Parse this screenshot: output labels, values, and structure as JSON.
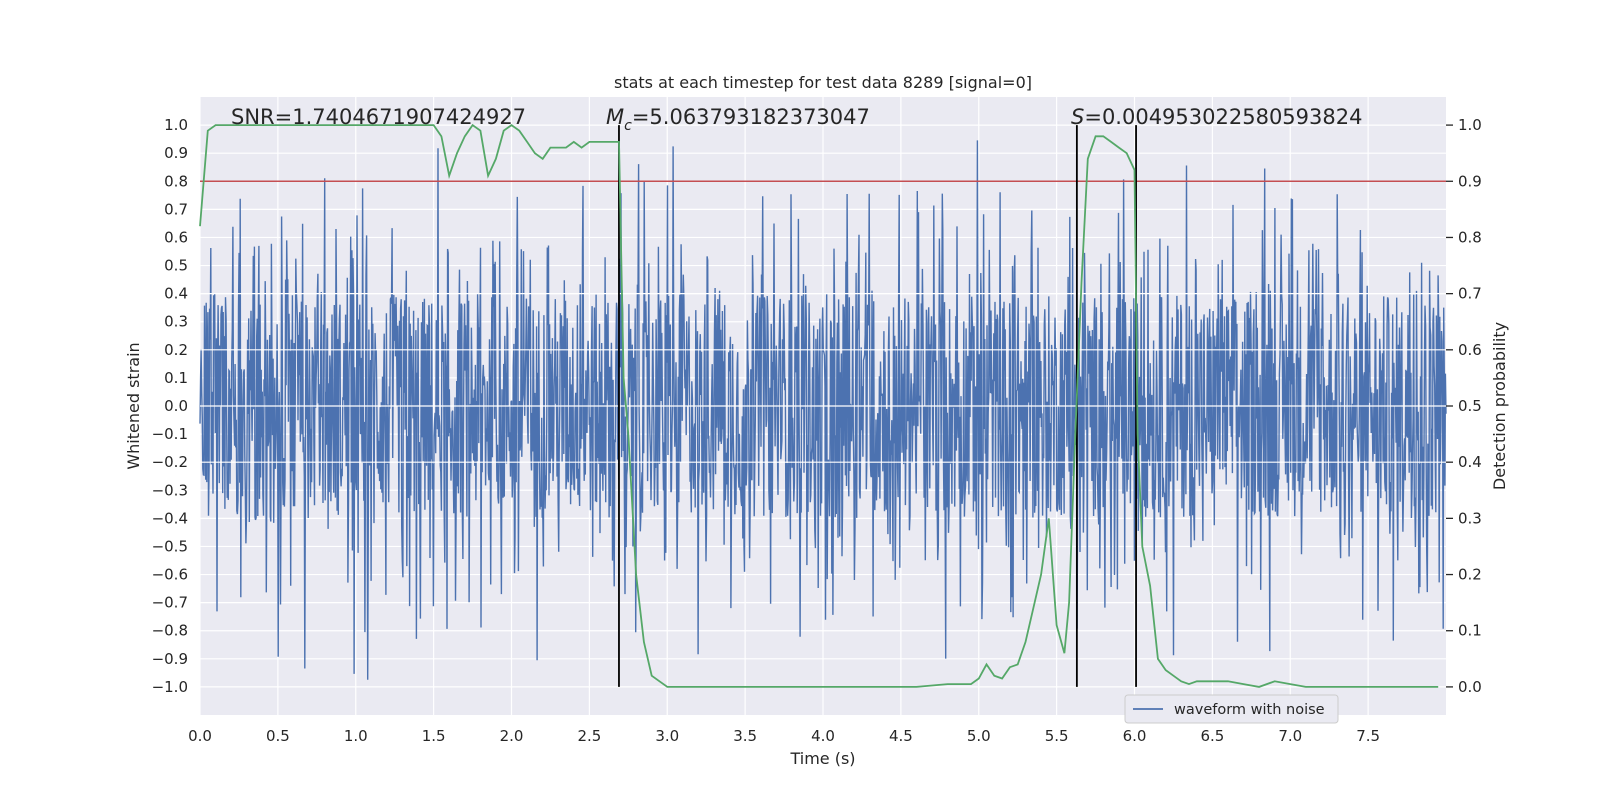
{
  "chart_data": {
    "type": "line",
    "title": "stats at each timestep for test data 8289 [signal=0]",
    "xlabel": "Time (s)",
    "ylabel_left": "Whitened strain",
    "ylabel_right": "Detection probability",
    "xlim": [
      0,
      8
    ],
    "ylim_left": [
      -1.1,
      1.1
    ],
    "ylim_right": [
      -0.05,
      1.05
    ],
    "grid": true,
    "x_ticks": [
      "0.0",
      "0.5",
      "1.0",
      "1.5",
      "2.0",
      "2.5",
      "3.0",
      "3.5",
      "4.0",
      "4.5",
      "5.0",
      "5.5",
      "6.0",
      "6.5",
      "7.0",
      "7.5"
    ],
    "x_tick_values": [
      0,
      0.5,
      1,
      1.5,
      2,
      2.5,
      3,
      3.5,
      4,
      4.5,
      5,
      5.5,
      6,
      6.5,
      7,
      7.5
    ],
    "y_left_ticks": [
      "1.0",
      "0.9",
      "0.8",
      "0.7",
      "0.6",
      "0.5",
      "0.4",
      "0.3",
      "0.2",
      "0.1",
      "0.0",
      "−0.1",
      "−0.2",
      "−0.3",
      "−0.4",
      "−0.5",
      "−0.6",
      "−0.7",
      "−0.8",
      "−0.9",
      "−1.0"
    ],
    "y_left_tick_values": [
      1,
      0.9,
      0.8,
      0.7,
      0.6,
      0.5,
      0.4,
      0.3,
      0.2,
      0.1,
      0,
      -0.1,
      -0.2,
      -0.3,
      -0.4,
      -0.5,
      -0.6,
      -0.7,
      -0.8,
      -0.9,
      -1
    ],
    "y_right_ticks": [
      "1.0",
      "0.9",
      "0.8",
      "0.7",
      "0.6",
      "0.5",
      "0.4",
      "0.3",
      "0.2",
      "0.1",
      "0.0"
    ],
    "y_right_tick_values": [
      1,
      0.9,
      0.8,
      0.7,
      0.6,
      0.5,
      0.4,
      0.3,
      0.2,
      0.1,
      0
    ],
    "annotations": {
      "snr": "SNR=1.7404671907424927",
      "mc_symbol": "M",
      "mc_sub": "c",
      "mc_value": "=5.063793182373047",
      "s_symbol": "S",
      "s_value": "=0.004953022580593824"
    },
    "threshold": 0.9,
    "vlines": [
      2.69,
      5.63,
      6.01
    ],
    "series": [
      {
        "name": "waveform with noise",
        "color": "#4c72b0",
        "seed": 8289,
        "typical_amplitude": [
          -0.38,
          0.38
        ],
        "peak_min": -1.0,
        "peak_max": 0.98
      },
      {
        "name": "detection probability",
        "color": "#55a868",
        "x": [
          0,
          0.05,
          0.1,
          0.2,
          0.4,
          0.6,
          0.8,
          1.0,
          1.2,
          1.4,
          1.5,
          1.55,
          1.6,
          1.65,
          1.7,
          1.75,
          1.8,
          1.85,
          1.9,
          1.95,
          2.0,
          2.05,
          2.1,
          2.15,
          2.2,
          2.25,
          2.3,
          2.35,
          2.4,
          2.45,
          2.5,
          2.55,
          2.6,
          2.65,
          2.69,
          2.72,
          2.75,
          2.78,
          2.8,
          2.85,
          2.9,
          2.95,
          3.0,
          3.2,
          3.5,
          4.0,
          4.5,
          4.6,
          4.8,
          4.95,
          5.0,
          5.05,
          5.1,
          5.15,
          5.2,
          5.25,
          5.3,
          5.35,
          5.4,
          5.45,
          5.5,
          5.55,
          5.58,
          5.62,
          5.66,
          5.7,
          5.75,
          5.8,
          5.85,
          5.9,
          5.95,
          6.0,
          6.02,
          6.05,
          6.1,
          6.15,
          6.2,
          6.25,
          6.3,
          6.35,
          6.4,
          6.45,
          6.5,
          6.6,
          6.7,
          6.8,
          6.9,
          7.0,
          7.1,
          7.3,
          7.5,
          7.7,
          7.9,
          7.95
        ],
        "y": [
          0.82,
          0.99,
          1.0,
          1.0,
          1.0,
          1.0,
          1.0,
          1.0,
          1.0,
          1.0,
          1.0,
          0.98,
          0.91,
          0.95,
          0.98,
          1.0,
          0.99,
          0.91,
          0.94,
          0.99,
          1.0,
          0.99,
          0.97,
          0.95,
          0.94,
          0.96,
          0.96,
          0.96,
          0.97,
          0.96,
          0.97,
          0.97,
          0.97,
          0.97,
          0.97,
          0.55,
          0.45,
          0.3,
          0.2,
          0.08,
          0.02,
          0.01,
          0.0,
          0.0,
          0.0,
          0.0,
          0.0,
          0.0,
          0.005,
          0.005,
          0.015,
          0.04,
          0.02,
          0.015,
          0.035,
          0.04,
          0.08,
          0.14,
          0.2,
          0.3,
          0.11,
          0.06,
          0.15,
          0.45,
          0.72,
          0.94,
          0.98,
          0.98,
          0.97,
          0.96,
          0.95,
          0.92,
          0.45,
          0.25,
          0.18,
          0.05,
          0.03,
          0.02,
          0.01,
          0.005,
          0.01,
          0.01,
          0.01,
          0.01,
          0.005,
          0.0,
          0.01,
          0.005,
          0.0,
          0.0,
          0.0,
          0.0,
          0.0,
          0.0
        ]
      }
    ],
    "legend": {
      "label": "waveform with noise",
      "placement": "lower-center"
    }
  }
}
